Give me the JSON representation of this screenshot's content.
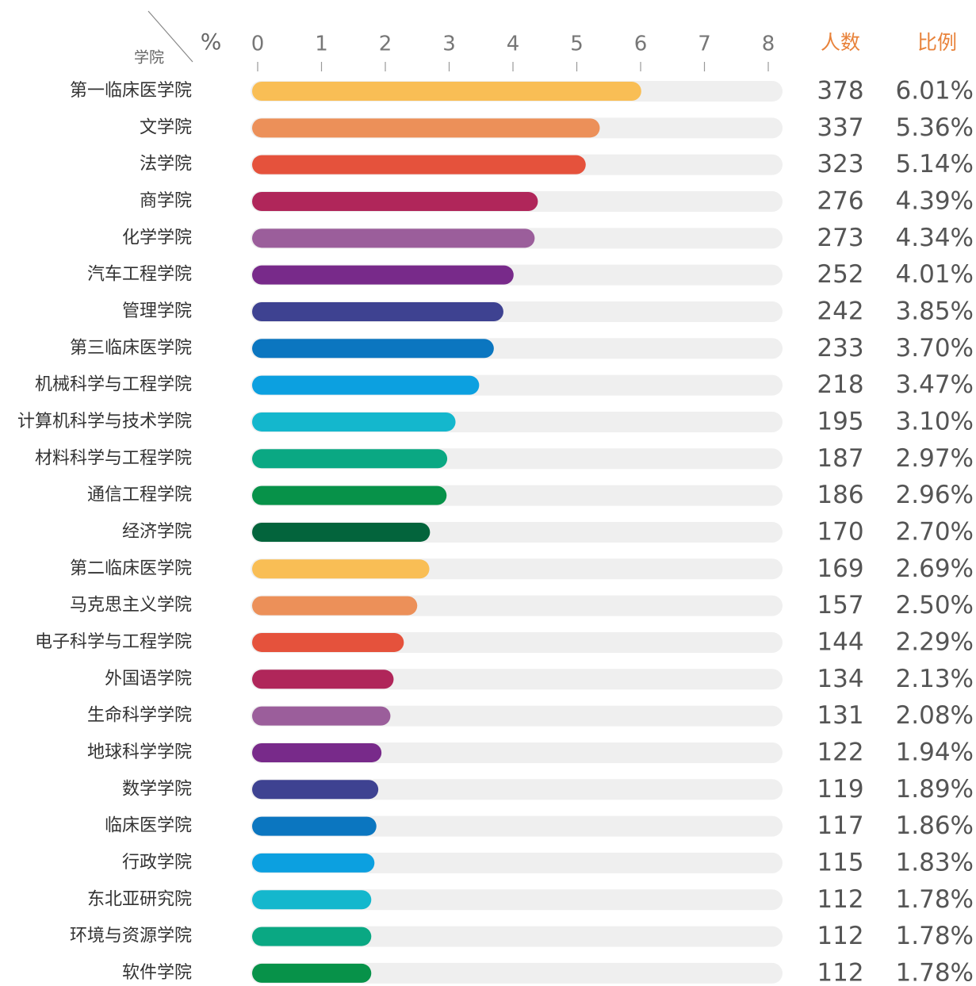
{
  "chart_data": {
    "type": "bar",
    "orientation": "horizontal",
    "category_header": "学院",
    "value_unit": "%",
    "count_header": "人数",
    "ratio_header": "比例",
    "categories": [
      "第一临床医学院",
      "文学院",
      "法学院",
      "商学院",
      "化学学院",
      "汽车工程学院",
      "管理学院",
      "第三临床医学院",
      "机械科学与工程学院",
      "计算机科学与技术学院",
      "材料科学与工程学院",
      "通信工程学院",
      "经济学院",
      "第二临床医学院",
      "马克思主义学院",
      "电子科学与工程学院",
      "外国语学院",
      "生命科学学院",
      "地球科学学院",
      "数学学院",
      "临床医学院",
      "行政学院",
      "东北亚研究院",
      "环境与资源学院",
      "软件学院"
    ],
    "values": [
      6.01,
      5.36,
      5.14,
      4.39,
      4.34,
      4.01,
      3.85,
      3.7,
      3.47,
      3.1,
      2.97,
      2.96,
      2.7,
      2.69,
      2.5,
      2.29,
      2.13,
      2.08,
      1.94,
      1.89,
      1.86,
      1.83,
      1.78,
      1.78,
      1.78
    ],
    "value_labels": [
      "6.01%",
      "5.36%",
      "5.14%",
      "4.39%",
      "4.34%",
      "4.01%",
      "3.85%",
      "3.70%",
      "3.47%",
      "3.10%",
      "2.97%",
      "2.96%",
      "2.70%",
      "2.69%",
      "2.50%",
      "2.29%",
      "2.13%",
      "2.08%",
      "1.94%",
      "1.89%",
      "1.86%",
      "1.83%",
      "1.78%",
      "1.78%",
      "1.78%"
    ],
    "counts": [
      378,
      337,
      323,
      276,
      273,
      252,
      242,
      233,
      218,
      195,
      187,
      186,
      170,
      169,
      157,
      144,
      134,
      131,
      122,
      119,
      117,
      115,
      112,
      112,
      112
    ],
    "colors": [
      "#f9be55",
      "#ec9059",
      "#e5523c",
      "#b0265a",
      "#9b5e9b",
      "#782a8a",
      "#3e4291",
      "#0b76c0",
      "#0ca0e0",
      "#14b7cd",
      "#0aa883",
      "#079249",
      "#03643c",
      "#f9be55",
      "#ec9059",
      "#e5523c",
      "#b0265a",
      "#9b5e9b",
      "#782a8a",
      "#3e4291",
      "#0b76c0",
      "#0ca0e0",
      "#14b7cd",
      "#0aa883",
      "#079249"
    ],
    "xlim": [
      0,
      8
    ],
    "xticks": [
      0,
      1,
      2,
      3,
      4,
      5,
      6,
      7,
      8
    ],
    "track_color": "#efefef",
    "header_color": "#e8823a"
  }
}
